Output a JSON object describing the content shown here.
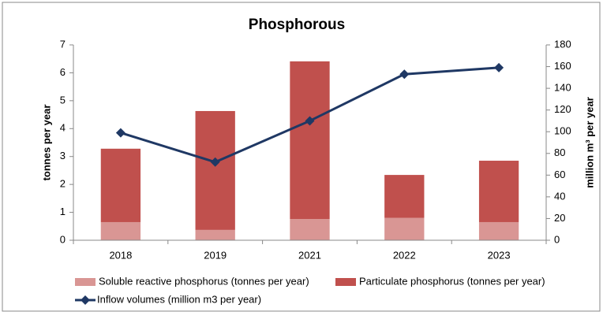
{
  "chart_data": {
    "type": "bar_line",
    "title": "Phosphorous",
    "y_label": "tonnes per year",
    "y2_label": "million m³ per year",
    "categories": [
      "2018",
      "2019",
      "2021",
      "2022",
      "2023"
    ],
    "series": [
      {
        "name": "Soluble reactive phosphorus (tonnes per year)",
        "type": "bar",
        "color": "#d99694",
        "values": [
          0.65,
          0.37,
          0.76,
          0.8,
          0.65
        ]
      },
      {
        "name": "Particulate phosphorus (tonnes per year)",
        "type": "bar",
        "color": "#c0504d",
        "values": [
          2.63,
          4.26,
          5.65,
          1.54,
          2.2
        ]
      },
      {
        "name": "Inflow volumes (million m3 per year)",
        "type": "line",
        "axis": "y2",
        "color": "#1f3864",
        "values": [
          99,
          72,
          110,
          153,
          159
        ]
      }
    ],
    "ylim": [
      0,
      7
    ],
    "yticks": [
      0,
      1,
      2,
      3,
      4,
      5,
      6,
      7
    ],
    "y2lim": [
      0,
      180
    ],
    "y2ticks": [
      0,
      20,
      40,
      60,
      80,
      100,
      120,
      140,
      160,
      180
    ],
    "stacked": true,
    "grid": false
  }
}
